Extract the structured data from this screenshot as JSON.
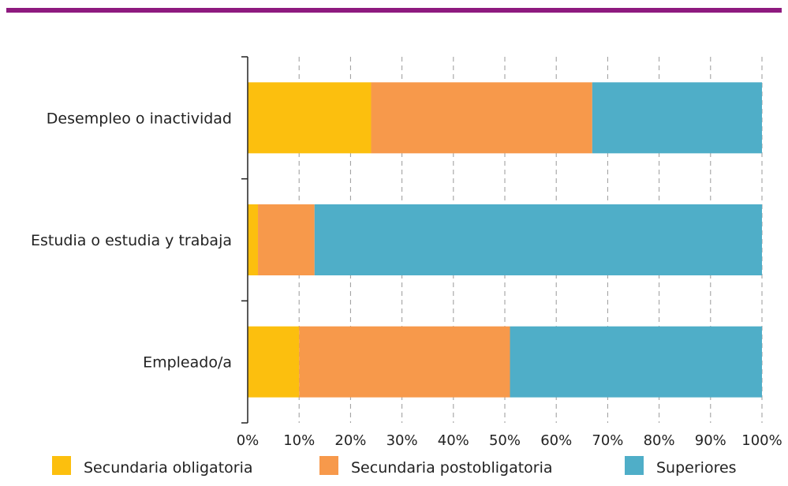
{
  "colors": {
    "accent_rule": "#8e1a7f",
    "axis": "#222222",
    "grid": "#9a9a9a"
  },
  "chart_data": {
    "type": "bar",
    "orientation": "horizontal",
    "stacked": true,
    "categories": [
      "Desempleo o inactividad",
      "Estudia o estudia y trabaja",
      "Empleado/a"
    ],
    "series": [
      {
        "name": "Secundaria obligatoria",
        "color": "#fcbf0e",
        "values": [
          24,
          2,
          10
        ]
      },
      {
        "name": "Secundaria postobligatoria",
        "color": "#f7994b",
        "values": [
          43,
          11,
          41
        ]
      },
      {
        "name": "Superiores",
        "color": "#4faec8",
        "values": [
          33,
          87,
          49
        ]
      }
    ],
    "xlim": [
      0,
      100
    ],
    "xticks": [
      0,
      10,
      20,
      30,
      40,
      50,
      60,
      70,
      80,
      90,
      100
    ],
    "tick_suffix": "%",
    "grid": "vertical-dashed",
    "legend_position": "bottom"
  }
}
